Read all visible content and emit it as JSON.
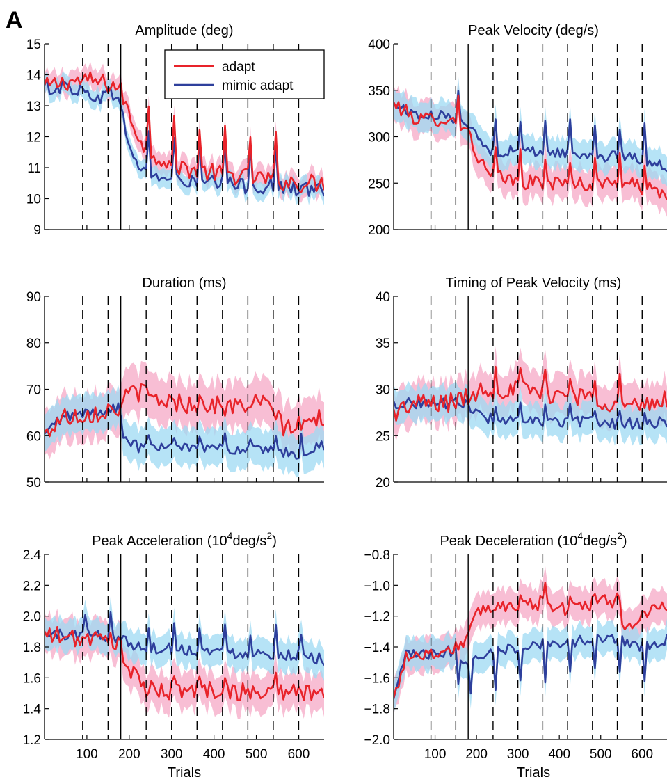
{
  "figure": {
    "panel_label": "A",
    "colors": {
      "adapt": "#e8232a",
      "mimic": "#2e3f9c",
      "adapt_band": "#f6a8c6",
      "mimic_band": "#9ed9f3"
    }
  },
  "chart_data": [
    {
      "id": "amplitude",
      "type": "line",
      "title": "Amplitude (deg)",
      "title_parts": [
        "Amplitude (deg)"
      ],
      "xlabel": "",
      "ylabel": "",
      "xlim": [
        0,
        660
      ],
      "ylim": [
        9,
        15
      ],
      "yticks": [
        9,
        10,
        11,
        12,
        13,
        14,
        15
      ],
      "ytick_labels": [
        "9",
        "10",
        "11",
        "12",
        "13",
        "14",
        "15"
      ],
      "xticks": [
        100,
        200,
        300,
        400,
        500,
        600
      ],
      "xtick_labels": [],
      "legend": {
        "placement": "top-right",
        "entries": [
          "adapt",
          "mimic adapt"
        ]
      },
      "block_boundaries_dashed": [
        90,
        150,
        240,
        300,
        360,
        420,
        480,
        540,
        600
      ],
      "block_boundary_solid": 180,
      "series": [
        {
          "name": "adapt",
          "band": 0.35,
          "knots": [
            [
              0,
              13.6
            ],
            [
              60,
              13.8
            ],
            [
              120,
              13.8
            ],
            [
              176,
              13.6
            ],
            [
              185,
              13.3
            ],
            [
              205,
              12.5
            ],
            [
              240,
              11.6
            ],
            [
              300,
              11.1
            ],
            [
              360,
              10.9
            ],
            [
              420,
              10.8
            ],
            [
              480,
              10.7
            ],
            [
              540,
              10.6
            ],
            [
              600,
              10.5
            ],
            [
              660,
              10.5
            ]
          ],
          "noise": 0.3,
          "spike": 1.3,
          "spike_at": [
            243,
            303,
            363,
            423,
            483,
            543
          ]
        },
        {
          "name": "mimic adapt",
          "band": 0.3,
          "knots": [
            [
              0,
              13.6
            ],
            [
              60,
              13.6
            ],
            [
              120,
              13.3
            ],
            [
              176,
              13.4
            ],
            [
              185,
              12.6
            ],
            [
              205,
              11.4
            ],
            [
              240,
              10.8
            ],
            [
              300,
              10.6
            ],
            [
              360,
              10.5
            ],
            [
              420,
              10.5
            ],
            [
              480,
              10.4
            ],
            [
              540,
              10.4
            ],
            [
              600,
              10.3
            ],
            [
              660,
              10.3
            ]
          ],
          "noise": 0.25,
          "spike": 1.4,
          "spike_at": [
            243,
            303,
            363,
            423,
            483,
            543
          ]
        }
      ]
    },
    {
      "id": "peak_velocity",
      "type": "line",
      "title": "Peak Velocity (deg/s)",
      "title_parts": [
        "Peak Velocity (deg/s)"
      ],
      "xlabel": "",
      "ylabel": "",
      "xlim": [
        0,
        660
      ],
      "ylim": [
        200,
        400
      ],
      "yticks": [
        200,
        250,
        300,
        350,
        400
      ],
      "ytick_labels": [
        "200",
        "250",
        "300",
        "350",
        "400"
      ],
      "xticks": [
        100,
        200,
        300,
        400,
        500,
        600
      ],
      "xtick_labels": [],
      "block_boundaries_dashed": [
        90,
        150,
        240,
        300,
        360,
        420,
        480,
        540,
        600
      ],
      "block_boundary_solid": 180,
      "series": [
        {
          "name": "adapt",
          "band": 18,
          "knots": [
            [
              0,
              335
            ],
            [
              60,
              318
            ],
            [
              120,
              320
            ],
            [
              176,
              312
            ],
            [
              190,
              290
            ],
            [
              230,
              258
            ],
            [
              300,
              252
            ],
            [
              360,
              250
            ],
            [
              420,
              250
            ],
            [
              480,
              248
            ],
            [
              540,
              252
            ],
            [
              600,
              245
            ],
            [
              660,
              238
            ]
          ],
          "noise": 8,
          "spike": 30,
          "spike_at": [
            153,
            243,
            303,
            363,
            423,
            483,
            543,
            603
          ]
        },
        {
          "name": "mimic adapt",
          "band": 16,
          "knots": [
            [
              0,
              335
            ],
            [
              60,
              322
            ],
            [
              120,
              322
            ],
            [
              176,
              318
            ],
            [
              190,
              305
            ],
            [
              230,
              285
            ],
            [
              300,
              284
            ],
            [
              360,
              284
            ],
            [
              420,
              282
            ],
            [
              480,
              280
            ],
            [
              540,
              278
            ],
            [
              600,
              276
            ],
            [
              660,
              268
            ]
          ],
          "noise": 6,
          "spike": 35,
          "spike_at": [
            153,
            243,
            303,
            363,
            423,
            483,
            543,
            603
          ]
        }
      ]
    },
    {
      "id": "duration",
      "type": "line",
      "title": "Duration (ms)",
      "title_parts": [
        "Duration (ms)"
      ],
      "xlabel": "",
      "ylabel": "",
      "xlim": [
        0,
        660
      ],
      "ylim": [
        50,
        90
      ],
      "yticks": [
        50,
        60,
        70,
        80,
        90
      ],
      "ytick_labels": [
        "50",
        "60",
        "70",
        "80",
        "90"
      ],
      "xticks": [
        100,
        200,
        300,
        400,
        500,
        600
      ],
      "xtick_labels": [],
      "block_boundaries_dashed": [
        90,
        150,
        240,
        300,
        360,
        420,
        480,
        540,
        600
      ],
      "block_boundary_solid": 180,
      "series": [
        {
          "name": "adapt",
          "band": 5,
          "knots": [
            [
              0,
              60
            ],
            [
              40,
              64
            ],
            [
              120,
              65
            ],
            [
              176,
              66
            ],
            [
              210,
              70
            ],
            [
              260,
              68
            ],
            [
              320,
              67
            ],
            [
              380,
              67
            ],
            [
              440,
              66
            ],
            [
              500,
              67
            ],
            [
              540,
              66
            ],
            [
              560,
              62
            ],
            [
              600,
              62
            ],
            [
              660,
              64
            ]
          ],
          "noise": 2.2,
          "spike": 0,
          "spike_at": []
        },
        {
          "name": "mimic adapt",
          "band": 4,
          "knots": [
            [
              0,
              60
            ],
            [
              40,
              64
            ],
            [
              120,
              65
            ],
            [
              176,
              66
            ],
            [
              185,
              60
            ],
            [
              220,
              57.5
            ],
            [
              300,
              57.5
            ],
            [
              360,
              58
            ],
            [
              420,
              57
            ],
            [
              480,
              57
            ],
            [
              540,
              56.5
            ],
            [
              600,
              56
            ],
            [
              660,
              58
            ]
          ],
          "noise": 1.2,
          "spike": 3,
          "spike_at": [
            243,
            303,
            363,
            423,
            483,
            543,
            603
          ]
        }
      ]
    },
    {
      "id": "timing_peak_velocity",
      "type": "line",
      "title": "Timing of Peak Velocity (ms)",
      "title_parts": [
        "Timing of Peak Velocity (ms)"
      ],
      "xlabel": "",
      "ylabel": "",
      "xlim": [
        0,
        660
      ],
      "ylim": [
        20,
        40
      ],
      "yticks": [
        20,
        25,
        30,
        35,
        40
      ],
      "ytick_labels": [
        "20",
        "25",
        "30",
        "35",
        "40"
      ],
      "xticks": [
        100,
        200,
        300,
        400,
        500,
        600
      ],
      "xtick_labels": [],
      "block_boundaries_dashed": [
        90,
        150,
        240,
        300,
        360,
        420,
        480,
        540,
        600
      ],
      "block_boundary_solid": 180,
      "series": [
        {
          "name": "adapt",
          "band": 2.2,
          "knots": [
            [
              0,
              27.5
            ],
            [
              60,
              28.5
            ],
            [
              120,
              28.5
            ],
            [
              176,
              29
            ],
            [
              210,
              30
            ],
            [
              300,
              30
            ],
            [
              360,
              29.5
            ],
            [
              420,
              29.5
            ],
            [
              480,
              29
            ],
            [
              540,
              28.5
            ],
            [
              600,
              28
            ],
            [
              660,
              29
            ]
          ],
          "noise": 1.1,
          "spike": 2.5,
          "spike_at": [
            245,
            305,
            365,
            425,
            485,
            545
          ]
        },
        {
          "name": "mimic adapt",
          "band": 1.8,
          "knots": [
            [
              0,
              28.5
            ],
            [
              60,
              28.5
            ],
            [
              120,
              28.5
            ],
            [
              176,
              28.5
            ],
            [
              210,
              27
            ],
            [
              300,
              26.5
            ],
            [
              360,
              26.5
            ],
            [
              420,
              26.5
            ],
            [
              480,
              26.5
            ],
            [
              540,
              26.3
            ],
            [
              600,
              26.3
            ],
            [
              660,
              26.5
            ]
          ],
          "noise": 0.6,
          "spike": 1.6,
          "spike_at": [
            245,
            305,
            365,
            425,
            485,
            545,
            605
          ]
        }
      ]
    },
    {
      "id": "peak_acceleration",
      "type": "line",
      "title": "Peak Acceleration (10⁴deg/s²)",
      "title_parts": [
        "Peak Acceleration (10",
        "4",
        "deg/s",
        "2",
        ")"
      ],
      "xlabel": "Trials",
      "ylabel": "",
      "xlim": [
        0,
        660
      ],
      "ylim": [
        1.2,
        2.4
      ],
      "yticks": [
        1.2,
        1.4,
        1.6,
        1.8,
        2.0,
        2.2,
        2.4
      ],
      "ytick_labels": [
        "1.2",
        "1.4",
        "1.6",
        "1.8",
        "2.0",
        "2.2",
        "2.4"
      ],
      "xticks": [
        100,
        200,
        300,
        400,
        500,
        600
      ],
      "xtick_labels": [
        "100",
        "200",
        "300",
        "400",
        "500",
        "600"
      ],
      "block_boundaries_dashed": [
        90,
        150,
        240,
        300,
        360,
        420,
        480,
        540,
        600
      ],
      "block_boundary_solid": 180,
      "series": [
        {
          "name": "adapt",
          "band": 0.12,
          "knots": [
            [
              0,
              1.88
            ],
            [
              60,
              1.86
            ],
            [
              120,
              1.85
            ],
            [
              176,
              1.82
            ],
            [
              200,
              1.65
            ],
            [
              240,
              1.52
            ],
            [
              300,
              1.52
            ],
            [
              360,
              1.52
            ],
            [
              420,
              1.52
            ],
            [
              480,
              1.5
            ],
            [
              540,
              1.52
            ],
            [
              600,
              1.5
            ],
            [
              660,
              1.52
            ]
          ],
          "noise": 0.06,
          "spike": 0.12,
          "spike_at": [
            153,
            303,
            363,
            423,
            543
          ]
        },
        {
          "name": "mimic adapt",
          "band": 0.1,
          "knots": [
            [
              0,
              1.88
            ],
            [
              60,
              1.88
            ],
            [
              120,
              1.88
            ],
            [
              176,
              1.86
            ],
            [
              220,
              1.8
            ],
            [
              300,
              1.79
            ],
            [
              360,
              1.78
            ],
            [
              420,
              1.77
            ],
            [
              480,
              1.76
            ],
            [
              540,
              1.76
            ],
            [
              600,
              1.75
            ],
            [
              660,
              1.72
            ]
          ],
          "noise": 0.04,
          "spike": 0.15,
          "spike_at": [
            93,
            153,
            243,
            303,
            363,
            423,
            483,
            543,
            603
          ]
        }
      ]
    },
    {
      "id": "peak_deceleration",
      "type": "line",
      "title": "Peak Deceleration (10⁴deg/s²)",
      "title_parts": [
        "Peak Deceleration (10",
        "4",
        "deg/s",
        "2",
        ")"
      ],
      "xlabel": "Trials",
      "ylabel": "",
      "xlim": [
        0,
        660
      ],
      "ylim": [
        -2.0,
        -0.8
      ],
      "yticks": [
        -2.0,
        -1.8,
        -1.6,
        -1.4,
        -1.2,
        -1.0,
        -0.8
      ],
      "ytick_labels": [
        "−2.0",
        "−1.8",
        "−1.6",
        "−1.4",
        "−1.2",
        "−1.0",
        "−0.8"
      ],
      "xticks": [
        100,
        200,
        300,
        400,
        500,
        600
      ],
      "xtick_labels": [
        "100",
        "200",
        "300",
        "400",
        "500",
        "600"
      ],
      "block_boundaries_dashed": [
        90,
        150,
        240,
        300,
        360,
        420,
        480,
        540,
        600
      ],
      "block_boundary_solid": 180,
      "series": [
        {
          "name": "adapt",
          "band": 0.11,
          "knots": [
            [
              0,
              -1.75
            ],
            [
              30,
              -1.45
            ],
            [
              90,
              -1.45
            ],
            [
              150,
              -1.4
            ],
            [
              176,
              -1.35
            ],
            [
              210,
              -1.15
            ],
            [
              300,
              -1.12
            ],
            [
              360,
              -1.12
            ],
            [
              420,
              -1.15
            ],
            [
              480,
              -1.12
            ],
            [
              540,
              -1.1
            ],
            [
              560,
              -1.28
            ],
            [
              600,
              -1.2
            ],
            [
              660,
              -1.12
            ]
          ],
          "noise": 0.05,
          "spike": 0.1,
          "spike_at": [
            305,
            365,
            425,
            485,
            545
          ]
        },
        {
          "name": "mimic adapt",
          "band": 0.1,
          "knots": [
            [
              0,
              -1.75
            ],
            [
              30,
              -1.45
            ],
            [
              90,
              -1.45
            ],
            [
              150,
              -1.42
            ],
            [
              176,
              -1.5
            ],
            [
              210,
              -1.45
            ],
            [
              300,
              -1.4
            ],
            [
              360,
              -1.38
            ],
            [
              420,
              -1.37
            ],
            [
              480,
              -1.35
            ],
            [
              540,
              -1.34
            ],
            [
              600,
              -1.4
            ],
            [
              660,
              -1.35
            ]
          ],
          "noise": 0.035,
          "spike": -0.22,
          "spike_at": [
            153,
            183,
            245,
            305,
            365,
            425,
            485,
            545,
            605
          ]
        }
      ]
    }
  ]
}
